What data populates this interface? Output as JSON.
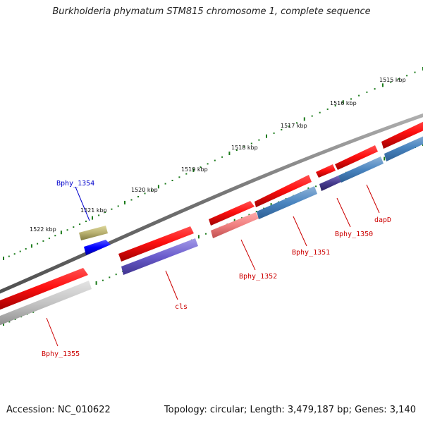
{
  "title": "Burkholderia phymatum STM815 chromosome 1, complete sequence",
  "footer": {
    "accession": "Accession: NC_010622",
    "summary": "Topology: circular; Length: 3,479,187 bp; Genes: 3,140"
  },
  "colors": {
    "backbone": "#7a7a7a",
    "tick": "#1a7a1a",
    "label_red": "#cc0000",
    "label_blue": "#0000cc"
  },
  "scale_ticks": [
    {
      "label": "1515 kbp"
    },
    {
      "label": "1516 kbp"
    },
    {
      "label": "1517 kbp"
    },
    {
      "label": "1518 kbp"
    },
    {
      "label": "1519 kbp"
    },
    {
      "label": "1520 kbp"
    },
    {
      "label": "1521 kbp"
    },
    {
      "label": "1522 kbp"
    }
  ],
  "genes": [
    {
      "name": "Bphy_1354",
      "label_color": "blue"
    },
    {
      "name": "cls",
      "label_color": "red"
    },
    {
      "name": "Bphy_1355",
      "label_color": "red"
    },
    {
      "name": "Bphy_1352",
      "label_color": "red"
    },
    {
      "name": "Bphy_1351",
      "label_color": "red"
    },
    {
      "name": "Bphy_1350",
      "label_color": "red"
    },
    {
      "name": "dapD",
      "label_color": "red"
    }
  ]
}
